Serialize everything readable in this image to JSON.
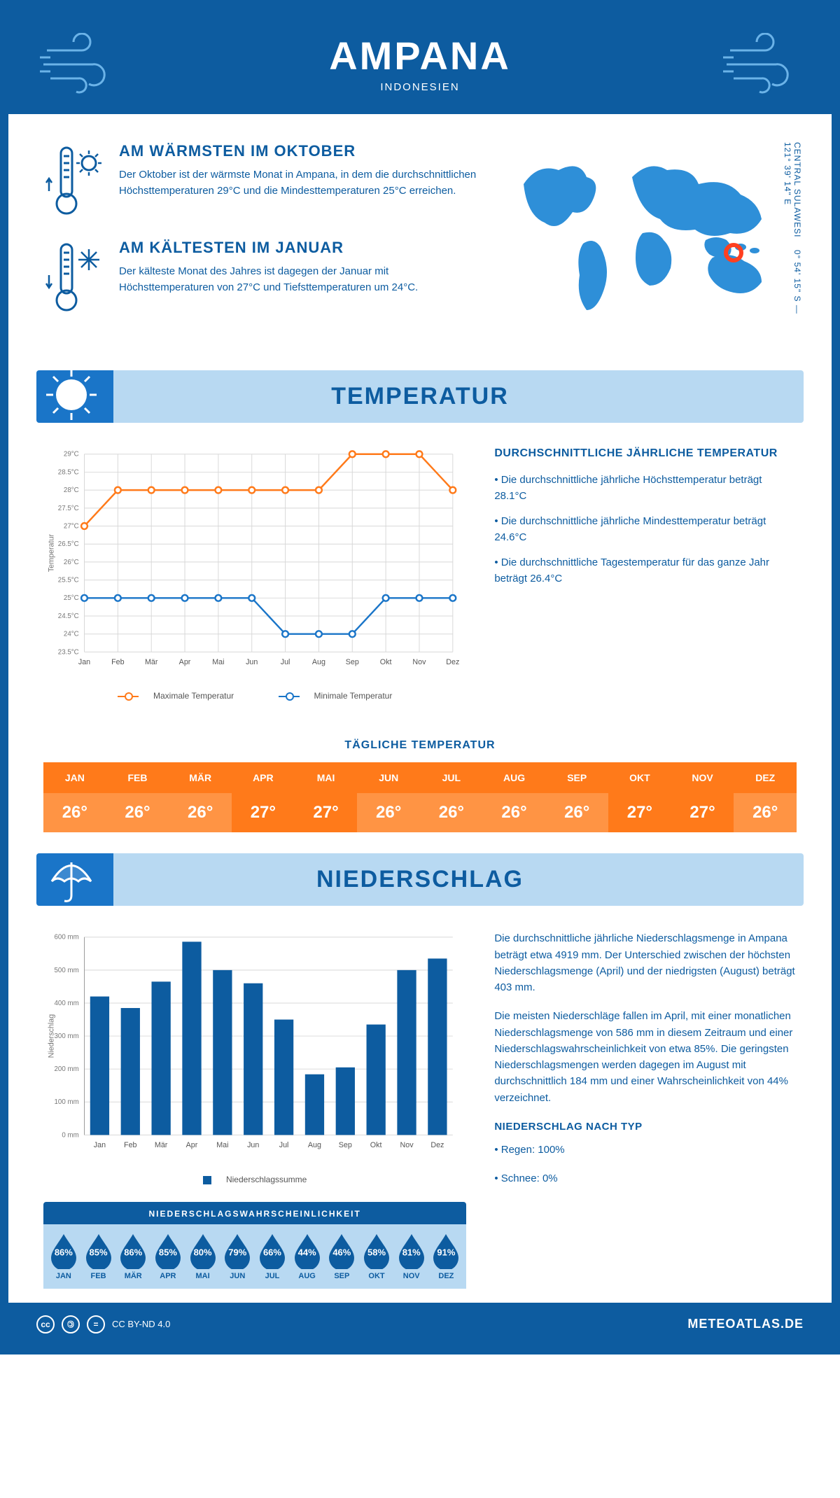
{
  "header": {
    "title": "AMPANA",
    "subtitle": "INDONESIEN"
  },
  "intro": {
    "warm": {
      "title": "AM WÄRMSTEN IM OKTOBER",
      "text": "Der Oktober ist der wärmste Monat in Ampana, in dem die durchschnittlichen Höchsttemperaturen 29°C und die Mindesttemperaturen 25°C erreichen."
    },
    "cold": {
      "title": "AM KÄLTESTEN IM JANUAR",
      "text": "Der kälteste Monat des Jahres ist dagegen der Januar mit Höchsttemperaturen von 27°C und Tiefsttemperaturen um 24°C."
    },
    "coords": "0° 54' 15\" S — 121° 39' 14\" E",
    "region": "CENTRAL SULAWESI"
  },
  "sections": {
    "temperature": "TEMPERATUR",
    "precipitation": "NIEDERSCHLAG"
  },
  "months": [
    "Jan",
    "Feb",
    "Mär",
    "Apr",
    "Mai",
    "Jun",
    "Jul",
    "Aug",
    "Sep",
    "Okt",
    "Nov",
    "Dez"
  ],
  "months_upper": [
    "JAN",
    "FEB",
    "MÄR",
    "APR",
    "MAI",
    "JUN",
    "JUL",
    "AUG",
    "SEP",
    "OKT",
    "NOV",
    "DEZ"
  ],
  "temp_chart": {
    "type": "line",
    "ylabel": "Temperatur",
    "ylim": [
      23.5,
      29.5
    ],
    "yticks": [
      "23.5°C",
      "24°C",
      "24.5°C",
      "25°C",
      "25.5°C",
      "26°C",
      "26.5°C",
      "27°C",
      "27.5°C",
      "28°C",
      "28.5°C",
      "29°C"
    ],
    "max_values": [
      27,
      28,
      28,
      28,
      28,
      28,
      28,
      28,
      29,
      29,
      29,
      28
    ],
    "min_values": [
      25,
      25,
      25,
      25,
      25,
      25,
      24,
      24,
      24,
      25,
      25,
      25
    ],
    "max_color": "#ff7a1a",
    "min_color": "#1a75c8",
    "grid_color": "#d8d8d8",
    "background": "#ffffff",
    "legend_max": "Maximale Temperatur",
    "legend_min": "Minimale Temperatur"
  },
  "temp_notes": {
    "heading": "DURCHSCHNITTLICHE JÄHRLICHE TEMPERATUR",
    "l1": "• Die durchschnittliche jährliche Höchsttemperatur beträgt 28.1°C",
    "l2": "• Die durchschnittliche jährliche Mindesttemperatur beträgt 24.6°C",
    "l3": "• Die durchschnittliche Tagestemperatur für das ganze Jahr beträgt 26.4°C"
  },
  "daily": {
    "heading": "TÄGLICHE TEMPERATUR",
    "values": [
      "26°",
      "26°",
      "26°",
      "27°",
      "27°",
      "26°",
      "26°",
      "26°",
      "26°",
      "27°",
      "27°",
      "26°"
    ],
    "month_bg": "#ff7a1a",
    "val_bgs": [
      "#ff9444",
      "#ff9444",
      "#ff9444",
      "#ff7a1a",
      "#ff7a1a",
      "#ff9444",
      "#ff9444",
      "#ff9444",
      "#ff9444",
      "#ff7a1a",
      "#ff7a1a",
      "#ff9444"
    ]
  },
  "precip_chart": {
    "type": "bar",
    "ylabel": "Niederschlag",
    "ylim": [
      0,
      600
    ],
    "ytick_step": 100,
    "yticks": [
      "0 mm",
      "100 mm",
      "200 mm",
      "300 mm",
      "400 mm",
      "500 mm",
      "600 mm"
    ],
    "values": [
      420,
      385,
      465,
      586,
      500,
      460,
      350,
      184,
      205,
      335,
      500,
      535
    ],
    "bar_color": "#0d5ca0",
    "grid_color": "#d8d8d8",
    "legend": "Niederschlagssumme"
  },
  "precip_notes": {
    "p1": "Die durchschnittliche jährliche Niederschlagsmenge in Ampana beträgt etwa 4919 mm. Der Unterschied zwischen der höchsten Niederschlagsmenge (April) und der niedrigsten (August) beträgt 403 mm.",
    "p2": "Die meisten Niederschläge fallen im April, mit einer monatlichen Niederschlagsmenge von 586 mm in diesem Zeitraum und einer Niederschlagswahrscheinlichkeit von etwa 85%. Die geringsten Niederschlagsmengen werden dagegen im August mit durchschnittlich 184 mm und einer Wahrscheinlichkeit von 44% verzeichnet.",
    "type_heading": "NIEDERSCHLAG NACH TYP",
    "t1": "• Regen: 100%",
    "t2": "• Schnee: 0%"
  },
  "probability": {
    "heading": "NIEDERSCHLAGSWAHRSCHEINLICHKEIT",
    "values": [
      "86%",
      "85%",
      "86%",
      "85%",
      "80%",
      "79%",
      "66%",
      "44%",
      "46%",
      "58%",
      "81%",
      "91%"
    ],
    "drop_color": "#0d5ca0"
  },
  "footer": {
    "license": "CC BY-ND 4.0",
    "site": "METEOATLAS.DE"
  }
}
